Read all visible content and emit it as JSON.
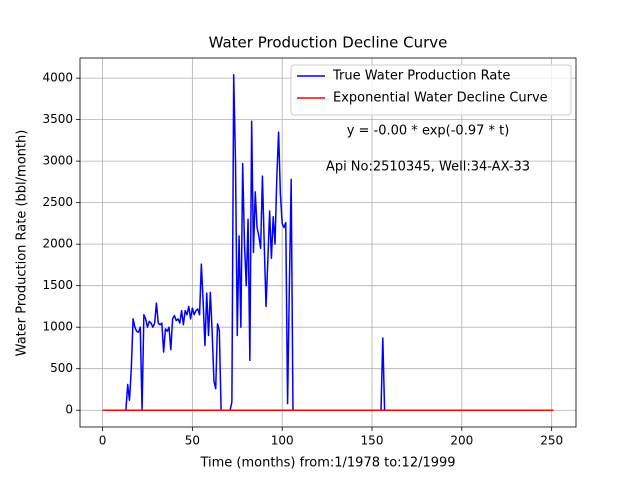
{
  "chart_data": {
    "type": "line",
    "title": "Water Production Decline Curve",
    "xlabel": "Time (months) from:1/1978 to:12/1999",
    "ylabel": "Water Production Rate (bbl/month)",
    "annotations": [
      "y = -0.00 * exp(-0.97 * t)",
      "Api No:2510345, Well:34-AX-33"
    ],
    "xlim": [
      -12.55,
      263.55
    ],
    "xticks": [
      0,
      50,
      100,
      150,
      200,
      250
    ],
    "ylim": [
      -202,
      4242
    ],
    "yticks": [
      0,
      500,
      1000,
      1500,
      2000,
      2500,
      3000,
      3500,
      4000
    ],
    "grid": true,
    "legend": "upper right",
    "series": [
      {
        "name": "True Water Production Rate",
        "color": "#0000ff",
        "x": [
          0,
          13,
          14,
          15,
          16,
          17,
          18,
          19,
          20,
          21,
          22,
          23,
          24,
          25,
          26,
          27,
          28,
          29,
          30,
          31,
          32,
          33,
          34,
          35,
          36,
          37,
          38,
          39,
          40,
          41,
          42,
          43,
          44,
          45,
          46,
          47,
          48,
          49,
          50,
          51,
          52,
          53,
          54,
          55,
          56,
          57,
          58,
          59,
          60,
          61,
          62,
          63,
          64,
          65,
          66,
          71,
          72,
          73,
          74,
          75,
          76,
          77,
          78,
          79,
          80,
          81,
          82,
          83,
          84,
          85,
          86,
          87,
          88,
          89,
          90,
          91,
          92,
          93,
          94,
          95,
          96,
          97,
          98,
          99,
          100,
          101,
          102,
          103,
          104,
          105,
          106,
          155,
          156,
          157,
          251
        ],
        "values": [
          0,
          0,
          310,
          120,
          500,
          1100,
          1000,
          950,
          940,
          1000,
          0,
          1150,
          1100,
          1000,
          1070,
          1050,
          1000,
          1050,
          1290,
          1050,
          1030,
          1050,
          700,
          980,
          950,
          1000,
          730,
          1100,
          1140,
          1080,
          1100,
          1050,
          1200,
          1030,
          1200,
          1150,
          1250,
          1100,
          1230,
          1150,
          1200,
          1220,
          1150,
          1760,
          1300,
          780,
          1410,
          900,
          1420,
          950,
          350,
          260,
          1040,
          960,
          0,
          0,
          100,
          4040,
          3000,
          900,
          2100,
          1000,
          2970,
          2000,
          1500,
          2300,
          600,
          3480,
          1900,
          2630,
          2200,
          2100,
          1950,
          2820,
          2000,
          1250,
          1800,
          2400,
          1830,
          2330,
          2000,
          2800,
          3350,
          2600,
          2250,
          2200,
          2260,
          80,
          1500,
          2780,
          0,
          0,
          870,
          0,
          0
        ]
      },
      {
        "name": "Exponential Water Decline Curve",
        "color": "#ff0000",
        "x": [
          0,
          251
        ],
        "values": [
          0,
          0
        ]
      }
    ]
  }
}
